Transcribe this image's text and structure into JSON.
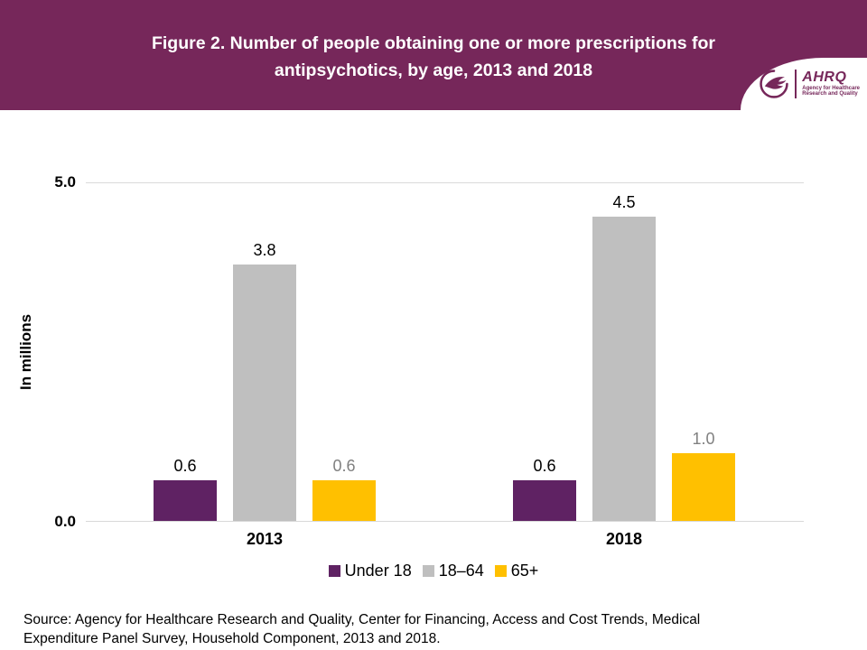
{
  "header": {
    "title": "Figure 2. Number of people obtaining one or more prescriptions for antipsychotics, by age, 2013 and 2018",
    "banner_color": "#76275A",
    "logo": {
      "acronym": "AHRQ",
      "tagline_line1": "Agency for Healthcare",
      "tagline_line2": "Research and Quality"
    }
  },
  "chart_data": {
    "type": "bar",
    "title": "Figure 2. Number of people obtaining one or more prescriptions for antipsychotics, by age, 2013 and 2018",
    "categories": [
      "2013",
      "2018"
    ],
    "series": [
      {
        "name": "Under 18",
        "values": [
          0.6,
          0.6
        ],
        "color": "#5F2263",
        "label_color": "#000000"
      },
      {
        "name": "18–64",
        "values": [
          3.8,
          4.5
        ],
        "color": "#BFBFBF",
        "label_color": "#000000"
      },
      {
        "name": "65+",
        "values": [
          0.6,
          1.0
        ],
        "color": "#FFC000",
        "label_color": "#808080"
      }
    ],
    "xlabel": "",
    "ylabel": "In millions",
    "ylim": [
      0,
      5
    ],
    "yticks": [
      {
        "value": 0,
        "label": "0.0"
      },
      {
        "value": 5,
        "label": "5.0"
      }
    ],
    "grid": true,
    "legend_position": "bottom"
  },
  "footer": {
    "source": "Source: Agency for Healthcare Research and Quality, Center for Financing, Access and Cost Trends, Medical Expenditure Panel Survey, Household Component, 2013 and 2018."
  }
}
